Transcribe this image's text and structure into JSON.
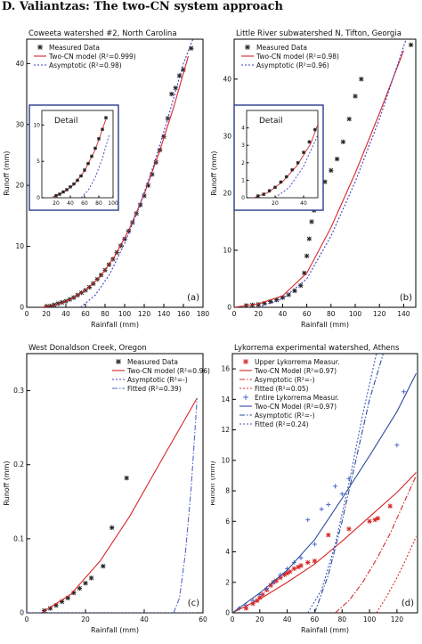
{
  "page_header": "D. Valiantzas: The two-CN system approach",
  "colors": {
    "measured": "#222222",
    "twocn": "#d62728",
    "asymptotic": "#3b3bc4",
    "blue_model": "#2c4d9c",
    "fitted_red": "#d62728"
  },
  "chart_data": [
    {
      "id": "a",
      "type": "scatter",
      "title": "Coweeta watershed #2, North Carolina",
      "panel_label": "(a)",
      "xlabel": "Rainfall (mm)",
      "ylabel": "Runoff (mm)",
      "xlim": [
        0,
        180
      ],
      "ylim": [
        0,
        44
      ],
      "xticks": [
        0,
        20,
        40,
        60,
        80,
        100,
        120,
        140,
        160,
        180
      ],
      "yticks": [
        0,
        10,
        20,
        30,
        40
      ],
      "legend": [
        "Measured Data",
        "Two-CN model (R²=0.999)",
        "Asymptotic (R²=0.98)"
      ],
      "legend_placement": "top-left",
      "series": [
        {
          "name": "Measured Data",
          "kind": "points",
          "x": [
            20,
            24,
            28,
            32,
            36,
            40,
            44,
            48,
            52,
            56,
            60,
            64,
            68,
            72,
            76,
            80,
            84,
            88,
            92,
            96,
            100,
            104,
            108,
            112,
            116,
            120,
            124,
            128,
            132,
            136,
            140,
            144,
            148,
            152,
            156,
            160,
            168
          ],
          "y": [
            0.1,
            0.2,
            0.4,
            0.6,
            0.8,
            1.0,
            1.3,
            1.6,
            2.0,
            2.4,
            2.8,
            3.3,
            3.9,
            4.6,
            5.3,
            6.1,
            7.0,
            7.9,
            9.0,
            10.1,
            11.2,
            12.5,
            13.9,
            15.4,
            16.8,
            18.3,
            20.0,
            21.8,
            23.8,
            25.8,
            28.0,
            31.0,
            35.0,
            36.0,
            38.0,
            39.0,
            42.5
          ]
        },
        {
          "name": "Two-CN model (R²=0.999)",
          "kind": "line",
          "x": [
            15,
            30,
            45,
            60,
            75,
            90,
            105,
            120,
            135,
            150,
            165
          ],
          "y": [
            0,
            0.4,
            1.3,
            2.8,
            5.0,
            8.4,
            12.9,
            18.6,
            25.3,
            32.8,
            41.2
          ]
        },
        {
          "name": "Asymptotic (R²=0.98)",
          "kind": "line",
          "x": [
            55,
            70,
            85,
            100,
            115,
            130,
            145,
            160,
            172
          ],
          "y": [
            0,
            2.0,
            5.5,
            10.5,
            16.5,
            23.5,
            31.5,
            40.0,
            45.0
          ]
        }
      ],
      "inset": {
        "title": "Detail",
        "xlim": [
          0,
          100
        ],
        "ylim": [
          0,
          12
        ],
        "xticks": [
          20,
          40,
          60,
          80,
          100
        ],
        "yticks": [
          0,
          5,
          10
        ],
        "points": {
          "x": [
            20,
            25,
            30,
            35,
            40,
            45,
            50,
            55,
            60,
            65,
            70,
            75,
            80,
            85,
            90
          ],
          "y": [
            0.3,
            0.5,
            0.8,
            1.1,
            1.5,
            1.9,
            2.4,
            3.0,
            3.8,
            4.7,
            5.7,
            6.8,
            8.1,
            9.4,
            11.0
          ]
        },
        "twocn": {
          "x": [
            15,
            30,
            45,
            60,
            75,
            90
          ],
          "y": [
            0.1,
            0.7,
            1.8,
            3.7,
            6.6,
            10.8
          ]
        },
        "asym": {
          "x": [
            55,
            65,
            75,
            85,
            95
          ],
          "y": [
            0,
            1.0,
            2.8,
            5.4,
            8.8
          ]
        }
      }
    },
    {
      "id": "b",
      "type": "scatter",
      "title": "Little River subwatershed N, Tifton, Georgia",
      "panel_label": "(b)",
      "xlabel": "Rainfall (mm)",
      "ylabel": "Runoff (mm)",
      "xlim": [
        0,
        150
      ],
      "ylim": [
        0,
        47
      ],
      "xticks": [
        0,
        20,
        40,
        60,
        80,
        100,
        120,
        140
      ],
      "yticks": [
        0,
        10,
        20,
        30,
        40
      ],
      "legend": [
        "Measured Data",
        "Two-CN model (R²=0.98)",
        "Asymptotic (R²=0.96)"
      ],
      "legend_placement": "top-left",
      "series": [
        {
          "name": "Measured Data",
          "kind": "points",
          "x": [
            10,
            15,
            20,
            25,
            30,
            35,
            40,
            45,
            50,
            55,
            58,
            60,
            62,
            64,
            66,
            70,
            75,
            80,
            85,
            90,
            95,
            100,
            105,
            146
          ],
          "y": [
            0.3,
            0.4,
            0.5,
            0.7,
            1.0,
            1.3,
            1.7,
            2.2,
            2.9,
            3.8,
            6.0,
            9.0,
            12.0,
            15.0,
            17.0,
            20.0,
            22.0,
            24.0,
            26.0,
            29.0,
            33.0,
            37.0,
            40.0,
            46.0
          ]
        },
        {
          "name": "Two-CN model (R²=0.98)",
          "kind": "line",
          "x": [
            0,
            20,
            40,
            60,
            80,
            100,
            120,
            140
          ],
          "y": [
            0,
            0.6,
            2.0,
            6.0,
            14.0,
            23.5,
            34.0,
            45.0
          ]
        },
        {
          "name": "Asymptotic (R²=0.96)",
          "kind": "line",
          "x": [
            20,
            40,
            60,
            80,
            100,
            120,
            142
          ],
          "y": [
            0,
            1.5,
            5.0,
            12.5,
            22.0,
            33.0,
            47.0
          ]
        }
      ],
      "inset": {
        "title": "Detail",
        "xlim": [
          0,
          50
        ],
        "ylim": [
          0,
          5
        ],
        "xticks": [
          20,
          40
        ],
        "yticks": [
          0,
          1,
          2,
          3,
          4
        ],
        "points": {
          "x": [
            8,
            12,
            16,
            20,
            24,
            28,
            32,
            36,
            40,
            44,
            48
          ],
          "y": [
            0.1,
            0.2,
            0.4,
            0.6,
            0.9,
            1.2,
            1.6,
            2.0,
            2.6,
            3.2,
            3.9
          ]
        },
        "twocn": {
          "x": [
            5,
            15,
            25,
            35,
            45,
            50
          ],
          "y": [
            0,
            0.3,
            0.9,
            1.8,
            3.1,
            4.2
          ]
        },
        "asym": {
          "x": [
            20,
            30,
            40,
            50
          ],
          "y": [
            0,
            0.6,
            1.8,
            3.6
          ]
        }
      }
    },
    {
      "id": "c",
      "type": "scatter",
      "title": "West Donaldson Creek, Oregon",
      "panel_label": "(c)",
      "xlabel": "Rainfall (mm)",
      "ylabel": "Runoff (mm)",
      "xlim": [
        0,
        60
      ],
      "ylim": [
        0,
        0.35
      ],
      "xticks": [
        0,
        20,
        40,
        60
      ],
      "yticks": [
        0,
        0.1,
        0.2,
        0.3
      ],
      "legend": [
        "Measured Data",
        "Two-CN model (R²=0.96)",
        "Asymptotic (R²=-)",
        "Fitted (R²=0.39)"
      ],
      "legend_placement": "top-right",
      "series": [
        {
          "name": "Measured Data",
          "kind": "points",
          "x": [
            6,
            8,
            10,
            12,
            14,
            16,
            18,
            20,
            22,
            26,
            29,
            34,
            58
          ],
          "y": [
            0.003,
            0.006,
            0.01,
            0.015,
            0.02,
            0.027,
            0.033,
            0.04,
            0.047,
            0.063,
            0.115,
            0.182,
            0.305
          ]
        },
        {
          "name": "Two-CN model (R²=0.96)",
          "kind": "line",
          "x": [
            5,
            15,
            25,
            35,
            45,
            58
          ],
          "y": [
            0,
            0.025,
            0.07,
            0.13,
            0.2,
            0.29
          ]
        },
        {
          "name": "Asymptotic (R²=-)",
          "kind": "line",
          "x": [
            0,
            58
          ],
          "y": [
            0,
            0
          ]
        },
        {
          "name": "Fitted (R²=0.39)",
          "kind": "line",
          "x": [
            50,
            52,
            54,
            56,
            58
          ],
          "y": [
            0,
            0.02,
            0.08,
            0.17,
            0.29
          ]
        }
      ]
    },
    {
      "id": "d",
      "type": "scatter",
      "title": "Lykorrema experimental watershed, Athens",
      "panel_label": "(d)",
      "xlabel": "Rainfall (mm)",
      "ylabel": "Runoff (mm)",
      "xlim": [
        0,
        135
      ],
      "ylim": [
        0,
        17
      ],
      "xticks": [
        0,
        20,
        40,
        60,
        80,
        100,
        120
      ],
      "yticks": [
        0,
        2,
        4,
        6,
        8,
        10,
        12,
        14,
        16
      ],
      "legend": [
        "Upper Lykorrema Measur.",
        "Two-CN Model (R²=0.97)",
        "Asymptotic (R²=-)",
        "Fitted (R²=0.05)",
        "Entire Lykorrema Measur.",
        "Two-CN Model (R²=0.97)",
        "Asymptotic (R²=-)",
        "Fitted (R²=0.24)"
      ],
      "legend_placement": "top-left",
      "series": [
        {
          "name": "Upper Lykorrema Measur.",
          "kind": "points",
          "x": [
            10,
            15,
            18,
            20,
            22,
            25,
            28,
            30,
            32,
            35,
            38,
            40,
            42,
            45,
            48,
            50,
            55,
            60,
            70,
            85,
            100,
            104,
            106,
            115
          ],
          "y": [
            0.3,
            0.6,
            0.8,
            1.0,
            1.2,
            1.5,
            1.8,
            2.0,
            2.1,
            2.3,
            2.5,
            2.6,
            2.7,
            2.9,
            3.0,
            3.1,
            3.3,
            3.4,
            5.1,
            5.5,
            6.0,
            6.1,
            6.2,
            7.0
          ]
        },
        {
          "name": "Entire Lykorrema Measur.",
          "kind": "points",
          "x": [
            5,
            10,
            15,
            20,
            25,
            30,
            35,
            40,
            45,
            50,
            55,
            60,
            65,
            70,
            75,
            80,
            85,
            120,
            125
          ],
          "y": [
            0.3,
            0.5,
            0.8,
            1.2,
            1.6,
            2.0,
            2.5,
            2.9,
            3.3,
            3.6,
            6.1,
            4.5,
            6.8,
            7.1,
            8.3,
            7.8,
            8.8,
            11.0,
            14.5
          ]
        },
        {
          "name": "Two-CN Model (R²=0.97)",
          "kind": "line",
          "x": [
            0,
            20,
            40,
            60,
            80,
            100,
            120,
            134
          ],
          "y": [
            0,
            0.9,
            2.0,
            3.2,
            4.7,
            6.3,
            7.9,
            9.2
          ]
        },
        {
          "name": "Asymptotic (R²=-)",
          "kind": "line",
          "x": [
            75,
            85,
            95,
            105,
            115,
            125,
            134
          ],
          "y": [
            0,
            0.8,
            2.0,
            3.5,
            5.2,
            7.2,
            9.0
          ]
        },
        {
          "name": "Fitted (R²=0.05)",
          "kind": "line",
          "x": [
            105,
            112,
            120,
            127,
            134
          ],
          "y": [
            0,
            1.0,
            2.3,
            3.6,
            5.0
          ]
        },
        {
          "name": "Two-CN Model (R²=0.97)",
          "kind": "line",
          "x": [
            0,
            20,
            40,
            60,
            80,
            100,
            120,
            134
          ],
          "y": [
            0,
            1.3,
            2.8,
            4.8,
            7.5,
            10.3,
            13.2,
            15.7
          ]
        },
        {
          "name": "Asymptotic (R²=-)",
          "kind": "line",
          "x": [
            60,
            70,
            80,
            90,
            100,
            110
          ],
          "y": [
            0,
            2.5,
            6.0,
            10.0,
            14.0,
            17.0
          ]
        },
        {
          "name": "Fitted (R²=0.24)",
          "kind": "line",
          "x": [
            55,
            65,
            75,
            85,
            95,
            105
          ],
          "y": [
            0,
            1.5,
            4.5,
            8.5,
            13.0,
            17.0
          ]
        }
      ]
    }
  ]
}
